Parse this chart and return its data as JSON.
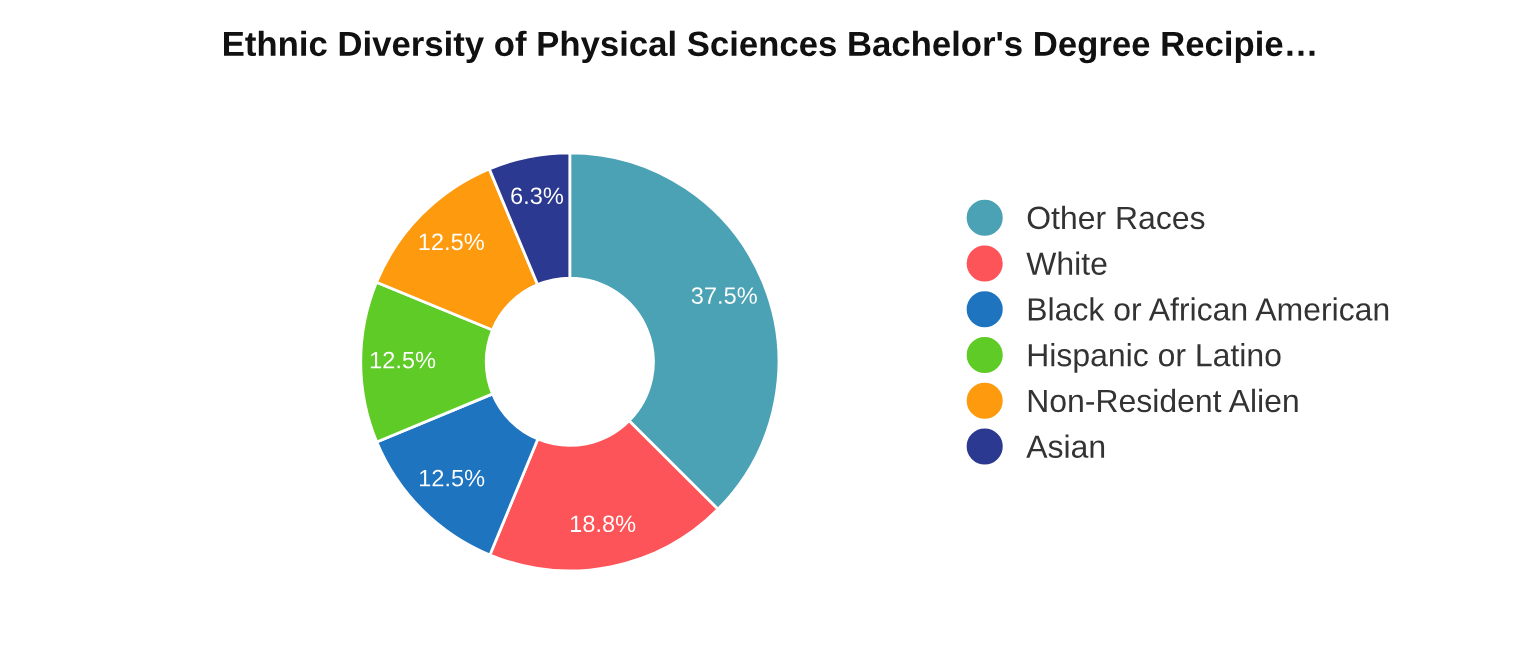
{
  "chart_data": {
    "type": "donut",
    "title": "Ethnic Diversity of Physical Sciences Bachelor's Degree Recipie…",
    "categories": [
      "Other Races",
      "White",
      "Black or African American",
      "Hispanic or Latino",
      "Non-Resident Alien",
      "Asian"
    ],
    "values": [
      37.5,
      18.8,
      12.5,
      12.5,
      12.5,
      6.3
    ],
    "colors": [
      "#4aa2b4",
      "#fd5459",
      "#1f74c0",
      "#5fcb26",
      "#fd9a0e",
      "#2b3990"
    ],
    "value_labels": [
      "37.5%",
      "18.8%",
      "12.5%",
      "12.5%",
      "12.5%",
      "6.3%"
    ],
    "legend": "right"
  }
}
